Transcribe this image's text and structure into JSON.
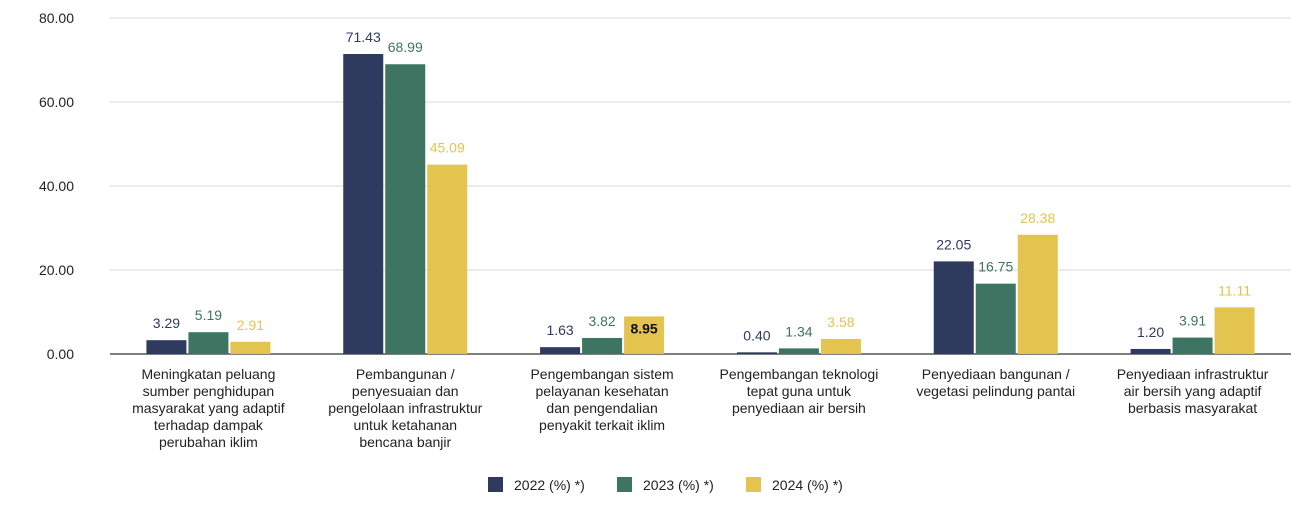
{
  "chart_data": {
    "type": "bar",
    "title": "",
    "xlabel": "",
    "ylabel": "",
    "ylim": [
      0,
      80
    ],
    "yticks": [
      "0.00",
      "20.00",
      "40.00",
      "60.00",
      "80.00"
    ],
    "grid": true,
    "legend_position": "bottom",
    "categories": [
      [
        "Meningkatan peluang",
        "sumber penghidupan",
        "masyarakat yang adaptif",
        "terhadap dampak",
        "perubahan iklim"
      ],
      [
        "Pembangunan /",
        "penyesuaian dan",
        "pengelolaan infrastruktur",
        "untuk ketahanan",
        "bencana banjir"
      ],
      [
        "Pengembangan sistem",
        "pelayanan kesehatan",
        "dan pengendalian",
        "penyakit terkait iklim"
      ],
      [
        "Pengembangan teknologi",
        "tepat guna untuk",
        "penyediaan air bersih"
      ],
      [
        "Penyediaan bangunan /",
        "vegetasi pelindung pantai"
      ],
      [
        "Penyediaan infrastruktur",
        "air bersih yang adaptif",
        "berbasis masyarakat"
      ]
    ],
    "series": [
      {
        "name": "2022 (%) *)",
        "color": "#2f3a5f",
        "values": [
          3.29,
          71.43,
          1.63,
          0.4,
          22.05,
          1.2
        ],
        "labels": [
          "3.29",
          "71.43",
          "1.63",
          "0.40",
          "22.05",
          "1.20"
        ]
      },
      {
        "name": "2023 (%) *)",
        "color": "#3e7462",
        "values": [
          5.19,
          68.99,
          3.82,
          1.34,
          16.75,
          3.91
        ],
        "labels": [
          "5.19",
          "68.99",
          "3.82",
          "1.34",
          "16.75",
          "3.91"
        ]
      },
      {
        "name": "2024 (%) *)",
        "color": "#e3c44f",
        "values": [
          2.91,
          45.09,
          8.95,
          3.58,
          28.38,
          11.11
        ],
        "labels": [
          "2.91",
          "45.09",
          "8.95",
          "3.58",
          "28.38",
          "11.11"
        ]
      }
    ]
  }
}
